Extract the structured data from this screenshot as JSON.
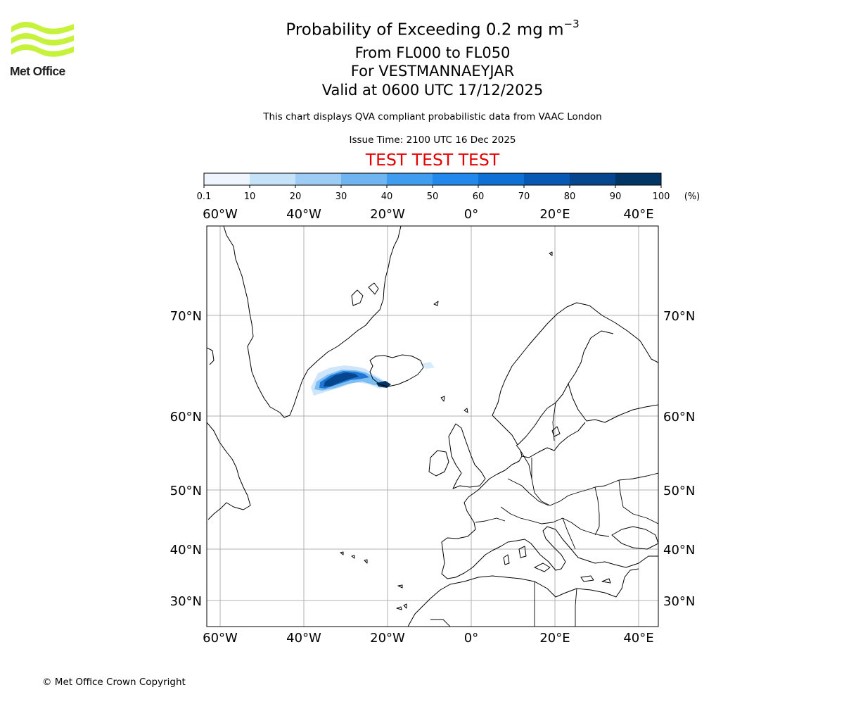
{
  "logo": {
    "text": "Met Office",
    "color": "#c7f23b"
  },
  "header": {
    "title_main": "Probability of Exceeding 0.2 mg m",
    "title_exp": "−3",
    "level_range": "From FL000 to FL050",
    "location": "For VESTMANNAEYJAR",
    "valid_time": "Valid at 0600 UTC 17/12/2025",
    "description": "This chart displays QVA compliant probabilistic data from VAAC London",
    "issue_time": "Issue Time: 2100 UTC 16 Dec 2025",
    "test_banner": "TEST TEST TEST"
  },
  "colorbar": {
    "tick_labels": [
      "0.1",
      "10",
      "20",
      "30",
      "40",
      "50",
      "60",
      "70",
      "80",
      "90",
      "100"
    ],
    "unit": "(%)",
    "colors": [
      "#eef5fd",
      "#c6e2f8",
      "#9dcdf4",
      "#6eb5f2",
      "#3f9cef",
      "#2288ec",
      "#0e6fd4",
      "#0859b4",
      "#06468f",
      "#033466"
    ]
  },
  "map": {
    "lon_labels": [
      "60°W",
      "40°W",
      "20°W",
      "0°",
      "20°E",
      "40°E"
    ],
    "lat_labels": [
      "70°N",
      "60°N",
      "50°N",
      "40°N",
      "30°N"
    ],
    "frame_color": "#000000",
    "gridline_color": "#b0b0b0"
  },
  "footer": {
    "copyright": "© Met Office Crown Copyright"
  }
}
